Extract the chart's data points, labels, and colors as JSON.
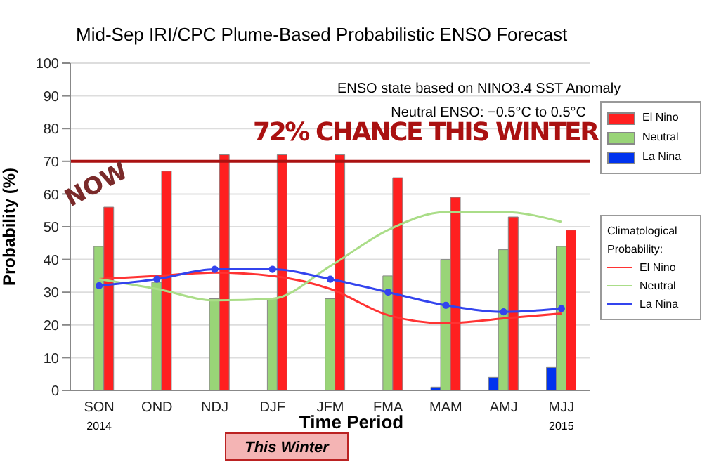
{
  "chart_data": {
    "type": "bar",
    "title": "Mid-Sep IRI/CPC Plume-Based Probabilistic ENSO Forecast",
    "xlabel": "Time Period",
    "ylabel": "Probability (%)",
    "legend_title": "Climatological Probability:",
    "categories": [
      "SON",
      "OND",
      "NDJ",
      "DJF",
      "JFM",
      "FMA",
      "MAM",
      "AMJ",
      "MJJ"
    ],
    "series": [
      {
        "name": "La Nina",
        "color": "#0033ee",
        "values": [
          0,
          0,
          0,
          0,
          0,
          0,
          1,
          4,
          7
        ]
      },
      {
        "name": "Neutral",
        "color": "#99d477",
        "values": [
          44,
          33,
          28,
          28,
          28,
          35,
          40,
          43,
          44
        ]
      },
      {
        "name": "El Nino",
        "color": "#ff2020",
        "values": [
          56,
          67,
          72,
          72,
          72,
          65,
          59,
          53,
          49
        ]
      },
      {
        "name": "El Nino",
        "type": "line",
        "color": "#ff3333",
        "marker": "none",
        "values": [
          34,
          35,
          36,
          35,
          31,
          23,
          20.5,
          22,
          23.5
        ]
      },
      {
        "name": "Neutral",
        "type": "line",
        "color": "#aadd88",
        "marker": "none",
        "values": [
          34,
          31,
          27.5,
          28,
          38,
          49,
          54.5,
          54.5,
          51.5
        ]
      },
      {
        "name": "La Nina",
        "type": "line",
        "color": "#3344ee",
        "marker": "circle",
        "values": [
          32,
          34,
          37,
          37,
          34,
          30,
          26,
          24,
          25
        ]
      }
    ],
    "ylim": [
      0,
      100
    ],
    "yticks": [
      0,
      10,
      20,
      30,
      40,
      50,
      60,
      70,
      80,
      90,
      100
    ],
    "grid": "y",
    "legend": "right",
    "ref_lines": [
      {
        "axis": "y",
        "value": 70,
        "color": "#aa1111"
      }
    ],
    "annotations": [
      "ENSO state based on NINO3.4 SST Anomaly",
      "Neutral ENSO: −0.5°C to 0.5°C",
      "72% CHANCE THIS WINTER",
      "NOW",
      "2014",
      "2015",
      "This Winter"
    ]
  }
}
